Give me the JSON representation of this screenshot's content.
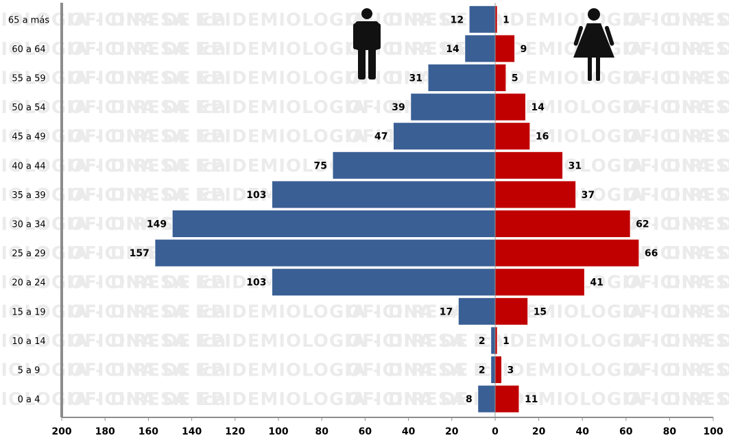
{
  "watermark": "OFICINA DE EPIDEMIOLOGIA - DIRESA Ica",
  "colors": {
    "male": "#3a5f95",
    "female": "#c00000",
    "axis": "#8c8c8c"
  },
  "icons": {
    "male": "male-figure-icon",
    "female": "female-figure-icon"
  },
  "chart_data": {
    "type": "bar",
    "orientation": "horizontal",
    "layout": "population-pyramid",
    "categories": [
      "0 a 4",
      "5 a 9",
      "10 a 14",
      "15 a 19",
      "20 a 24",
      "25 a 29",
      "30 a 34",
      "35 a 39",
      "40 a 44",
      "45 a 49",
      "50 a 54",
      "55 a 59",
      "60 a 64",
      "65 a más"
    ],
    "series": [
      {
        "side": "left",
        "values": [
          8,
          2,
          2,
          17,
          103,
          157,
          149,
          103,
          75,
          47,
          39,
          31,
          14,
          12
        ]
      },
      {
        "side": "right",
        "values": [
          11,
          3,
          1,
          15,
          41,
          66,
          62,
          37,
          31,
          16,
          14,
          5,
          9,
          1
        ]
      }
    ],
    "x_ticks": [
      "200",
      "180",
      "160",
      "140",
      "120",
      "100",
      "80",
      "60",
      "40",
      "20",
      "0",
      "20",
      "40",
      "60",
      "80",
      "100"
    ],
    "xlim_left": [
      0,
      200
    ],
    "xlim_right": [
      0,
      100
    ],
    "grid": false
  }
}
